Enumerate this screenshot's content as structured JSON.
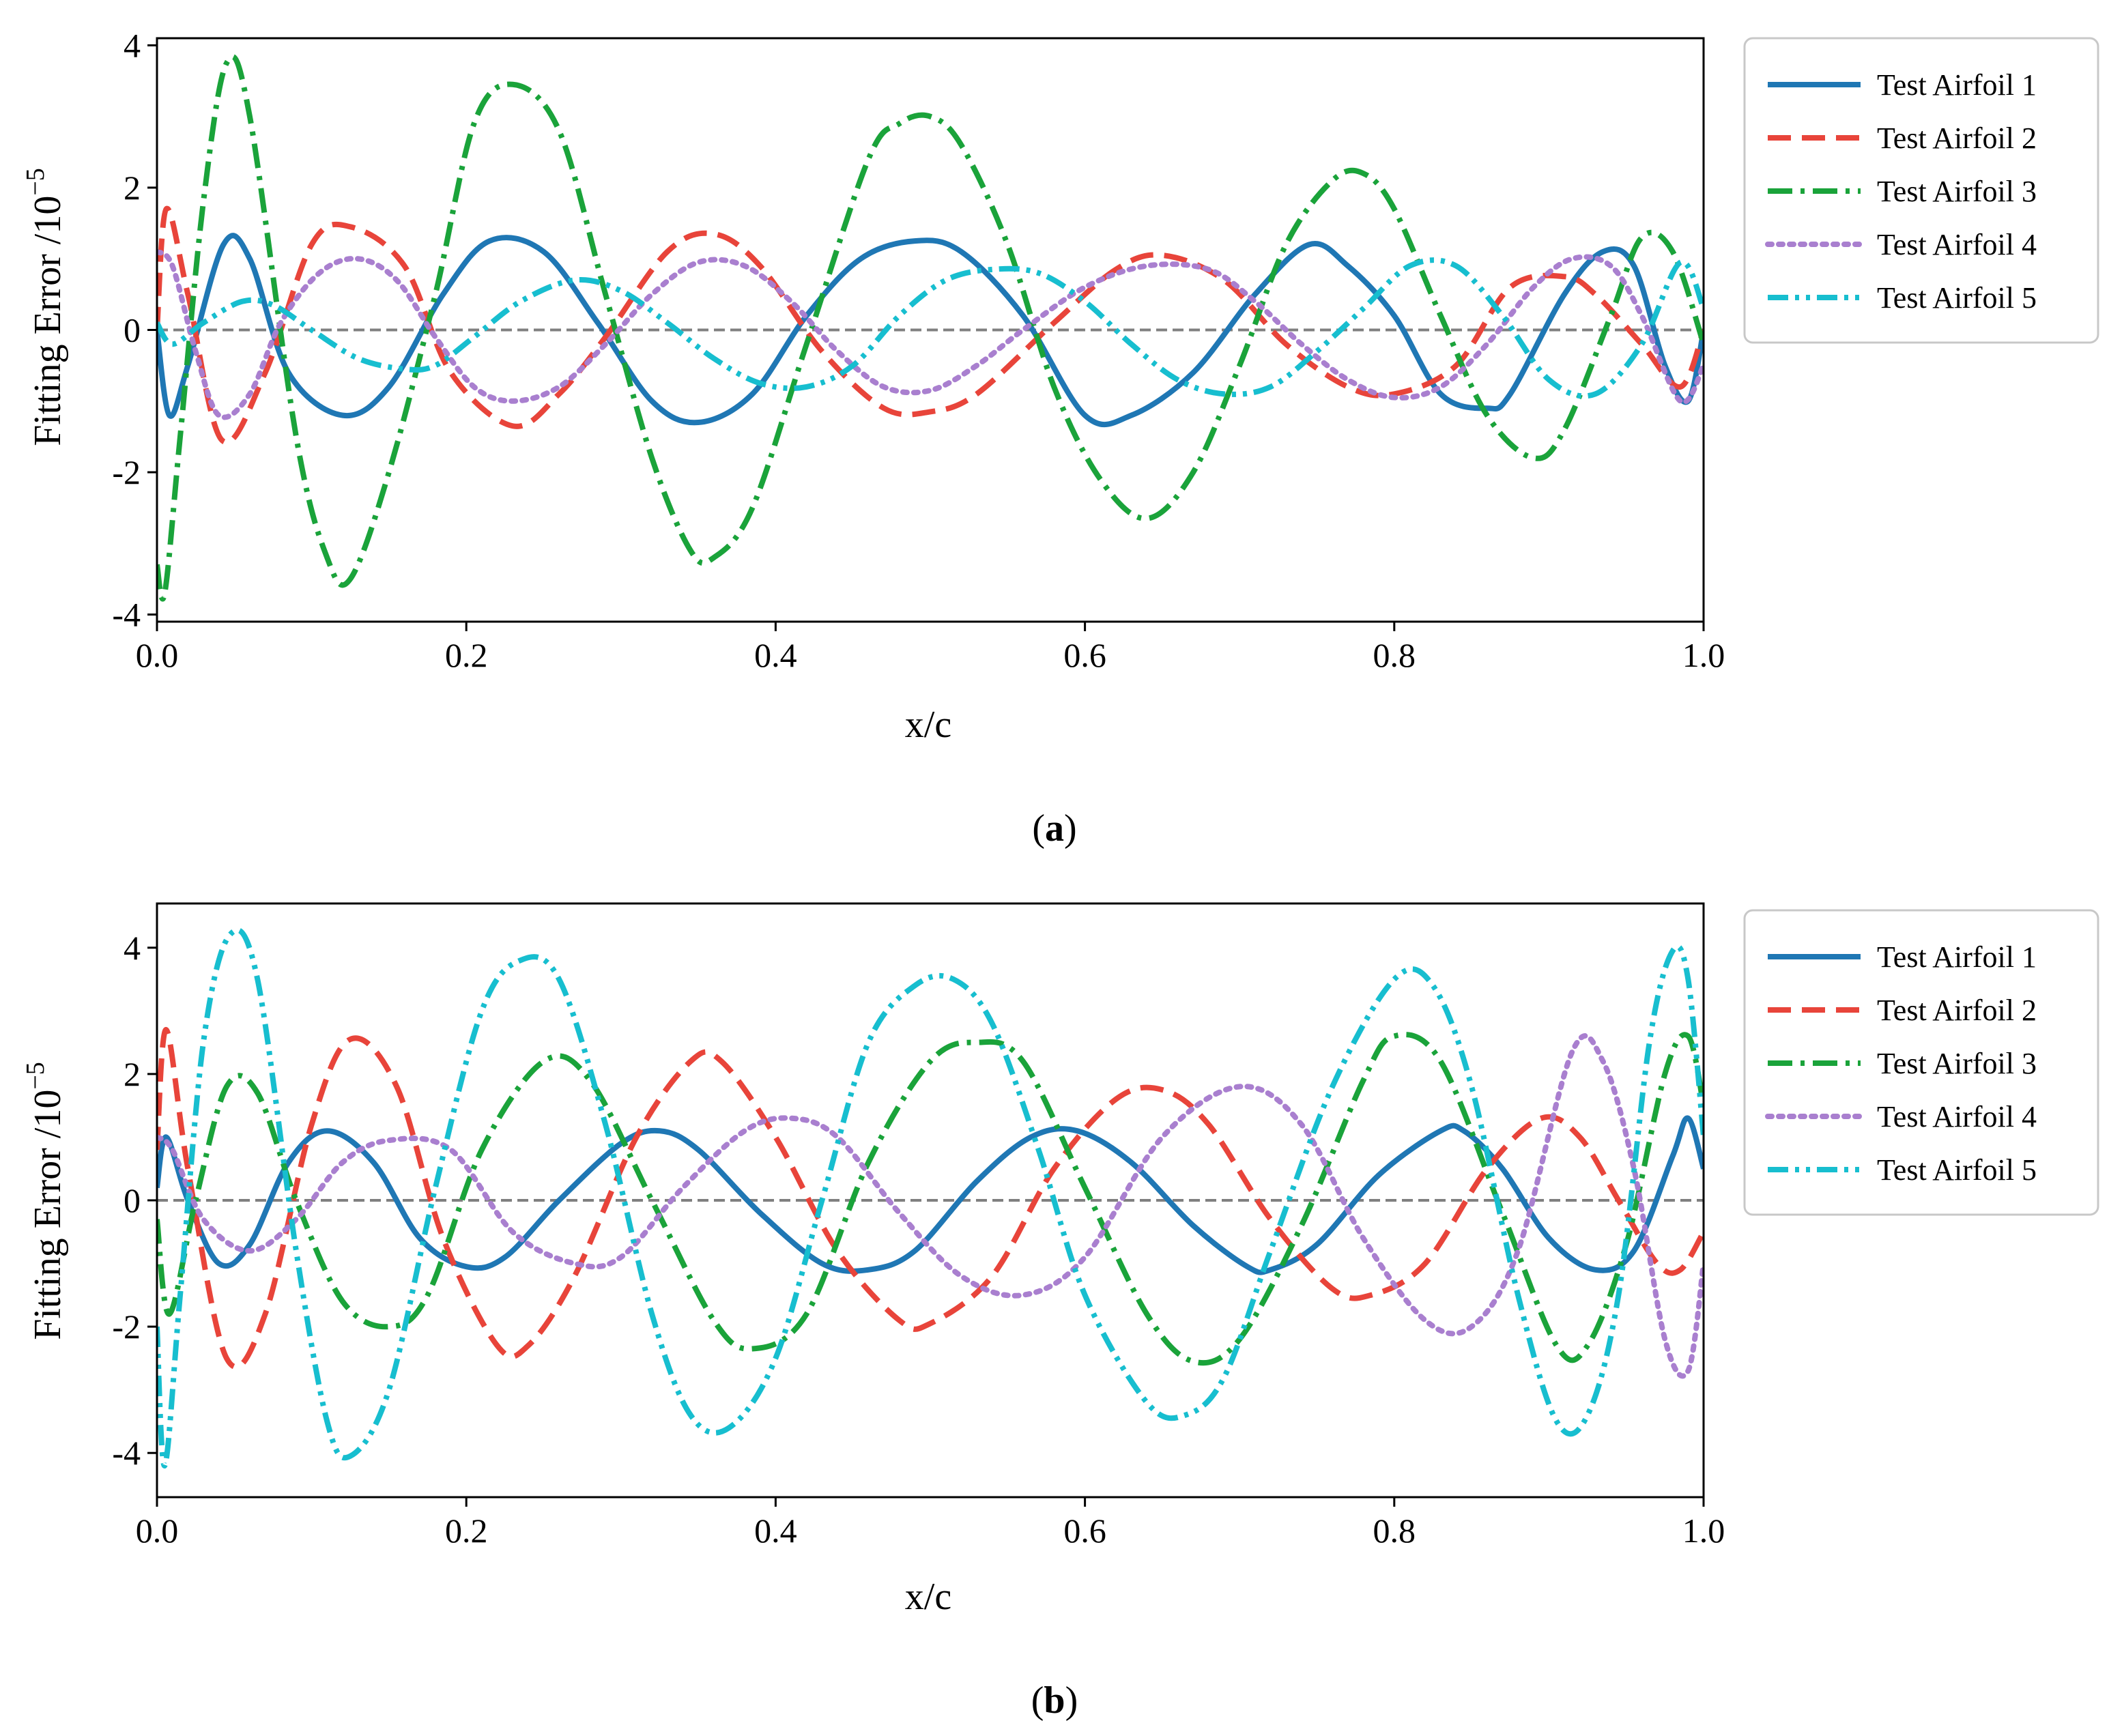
{
  "figure": {
    "captions": [
      "a",
      "b"
    ]
  },
  "chart_data": [
    {
      "type": "line",
      "panel": "a",
      "title": "",
      "xlabel": "x/c",
      "ylabel": "Fitting Error /10",
      "ylabel_exponent": "−5",
      "xlim": [
        0,
        1
      ],
      "ylim": [
        -4.1,
        4.1
      ],
      "xticks": [
        0,
        0.2,
        0.4,
        0.6,
        0.8,
        1.0
      ],
      "xtick_labels": [
        "0.0",
        "0.2",
        "0.4",
        "0.6",
        "0.8",
        "1.0"
      ],
      "yticks": [
        -4,
        -2,
        0,
        2,
        4
      ],
      "ytick_labels": [
        "-4",
        "-2",
        "0",
        "2",
        "4"
      ],
      "reference_line": 0,
      "legend_position": "outside-right-top",
      "series": [
        {
          "name": "Test Airfoil 1",
          "color": "#1f77b4",
          "style": "solid",
          "x": [
            0,
            0.008,
            0.02,
            0.043,
            0.06,
            0.085,
            0.12,
            0.15,
            0.185,
            0.215,
            0.25,
            0.285,
            0.32,
            0.35,
            0.385,
            0.42,
            0.455,
            0.49,
            0.52,
            0.56,
            0.6,
            0.63,
            0.67,
            0.71,
            0.745,
            0.77,
            0.8,
            0.83,
            0.86,
            0.875,
            0.91,
            0.935,
            0.955,
            0.975,
            0.99,
            1.0
          ],
          "y": [
            0,
            -1.2,
            -0.5,
            1.2,
            1.0,
            -0.6,
            -1.2,
            -0.8,
            0.5,
            1.25,
            1.1,
            0.1,
            -1.0,
            -1.3,
            -0.9,
            0.2,
            1.0,
            1.25,
            1.1,
            0.2,
            -1.2,
            -1.2,
            -0.6,
            0.5,
            1.2,
            0.9,
            0.2,
            -0.9,
            -1.1,
            -0.9,
            0.5,
            1.1,
            0.9,
            -0.5,
            -1.0,
            0
          ]
        },
        {
          "name": "Test Airfoil 2",
          "color": "#e8443a",
          "style": "dashed",
          "x": [
            0,
            0.006,
            0.02,
            0.042,
            0.07,
            0.1,
            0.125,
            0.16,
            0.19,
            0.23,
            0.26,
            0.29,
            0.33,
            0.36,
            0.39,
            0.43,
            0.47,
            0.5,
            0.53,
            0.58,
            0.62,
            0.65,
            0.69,
            0.73,
            0.77,
            0.8,
            0.84,
            0.875,
            0.91,
            0.93,
            0.96,
            0.985,
            1.0
          ],
          "y": [
            0,
            1.7,
            0.5,
            -1.55,
            -0.6,
            1.2,
            1.45,
            0.9,
            -0.6,
            -1.35,
            -0.9,
            -0.1,
            1.1,
            1.35,
            0.9,
            -0.3,
            -1.1,
            -1.15,
            -0.9,
            0.1,
            0.85,
            1.05,
            0.7,
            -0.2,
            -0.8,
            -0.9,
            -0.5,
            0.6,
            0.75,
            0.5,
            -0.2,
            -0.8,
            0
          ]
        },
        {
          "name": "Test Airfoil 3",
          "color": "#1aa33a",
          "style": "dashdot",
          "x": [
            0,
            0.005,
            0.015,
            0.03,
            0.045,
            0.06,
            0.09,
            0.11,
            0.125,
            0.15,
            0.18,
            0.205,
            0.23,
            0.26,
            0.29,
            0.32,
            0.345,
            0.36,
            0.385,
            0.42,
            0.46,
            0.48,
            0.5,
            0.52,
            0.55,
            0.58,
            0.61,
            0.64,
            0.67,
            0.7,
            0.73,
            0.76,
            0.78,
            0.8,
            0.83,
            0.86,
            0.89,
            0.91,
            0.94,
            0.96,
            0.98,
            1.0
          ],
          "y": [
            -3.3,
            -3.7,
            -1.5,
            1.8,
            3.75,
            3.0,
            -1.5,
            -3.2,
            -3.5,
            -2.0,
            0.5,
            2.9,
            3.45,
            2.8,
            0.5,
            -1.8,
            -3.1,
            -3.2,
            -2.5,
            -0.2,
            2.4,
            2.9,
            3.0,
            2.6,
            1.2,
            -0.8,
            -2.1,
            -2.65,
            -2.0,
            -0.5,
            1.2,
            2.1,
            2.2,
            1.7,
            0.2,
            -1.2,
            -1.8,
            -1.4,
            0.2,
            1.3,
            1.1,
            -0.2
          ]
        },
        {
          "name": "Test Airfoil 4",
          "color": "#a97fcf",
          "style": "dotted",
          "x": [
            0,
            0.01,
            0.025,
            0.04,
            0.06,
            0.08,
            0.105,
            0.13,
            0.155,
            0.18,
            0.205,
            0.23,
            0.26,
            0.29,
            0.32,
            0.35,
            0.38,
            0.41,
            0.44,
            0.47,
            0.5,
            0.53,
            0.56,
            0.6,
            0.64,
            0.68,
            0.71,
            0.74,
            0.77,
            0.8,
            0.83,
            0.86,
            0.89,
            0.915,
            0.94,
            0.96,
            0.985,
            1.0
          ],
          "y": [
            1.1,
            0.9,
            -0.3,
            -1.2,
            -0.9,
            0.1,
            0.8,
            1.0,
            0.7,
            -0.1,
            -0.8,
            -1.0,
            -0.8,
            -0.2,
            0.5,
            0.95,
            0.9,
            0.4,
            -0.3,
            -0.8,
            -0.85,
            -0.5,
            0.0,
            0.6,
            0.9,
            0.85,
            0.4,
            -0.2,
            -0.7,
            -0.95,
            -0.8,
            -0.2,
            0.6,
            1.0,
            0.9,
            0.2,
            -1.0,
            -0.5
          ]
        },
        {
          "name": "Test Airfoil 5",
          "color": "#17becf",
          "style": "dashdotdot",
          "x": [
            0,
            0.01,
            0.03,
            0.055,
            0.075,
            0.1,
            0.13,
            0.16,
            0.18,
            0.205,
            0.235,
            0.27,
            0.3,
            0.33,
            0.36,
            0.39,
            0.42,
            0.45,
            0.48,
            0.51,
            0.54,
            0.57,
            0.6,
            0.63,
            0.66,
            0.69,
            0.72,
            0.75,
            0.78,
            0.81,
            0.84,
            0.87,
            0.9,
            0.93,
            0.96,
            0.985,
            1.0
          ],
          "y": [
            0.1,
            -0.2,
            0.1,
            0.4,
            0.35,
            0.0,
            -0.4,
            -0.55,
            -0.5,
            -0.1,
            0.4,
            0.7,
            0.55,
            0.1,
            -0.4,
            -0.75,
            -0.8,
            -0.5,
            0.2,
            0.7,
            0.85,
            0.8,
            0.4,
            -0.2,
            -0.7,
            -0.9,
            -0.8,
            -0.3,
            0.3,
            0.9,
            0.9,
            0.2,
            -0.7,
            -0.9,
            -0.2,
            0.95,
            0.3
          ]
        }
      ]
    },
    {
      "type": "line",
      "panel": "b",
      "title": "",
      "xlabel": "x/c",
      "ylabel": "Fitting Error /10",
      "ylabel_exponent": "−5",
      "xlim": [
        0,
        1
      ],
      "ylim": [
        -4.7,
        4.7
      ],
      "xticks": [
        0,
        0.2,
        0.4,
        0.6,
        0.8,
        1.0
      ],
      "xtick_labels": [
        "0.0",
        "0.2",
        "0.4",
        "0.6",
        "0.8",
        "1.0"
      ],
      "yticks": [
        -4,
        -2,
        0,
        2,
        4
      ],
      "ytick_labels": [
        "-4",
        "-2",
        "0",
        "2",
        "4"
      ],
      "reference_line": 0,
      "legend_position": "outside-right-top",
      "series": [
        {
          "name": "Test Airfoil 1",
          "color": "#1f77b4",
          "style": "solid",
          "x": [
            0,
            0.006,
            0.02,
            0.04,
            0.06,
            0.085,
            0.11,
            0.14,
            0.17,
            0.2,
            0.225,
            0.26,
            0.3,
            0.325,
            0.35,
            0.39,
            0.43,
            0.46,
            0.49,
            0.53,
            0.565,
            0.595,
            0.63,
            0.67,
            0.705,
            0.72,
            0.75,
            0.79,
            0.83,
            0.845,
            0.87,
            0.9,
            0.93,
            0.955,
            0.98,
            0.99,
            1.0
          ],
          "y": [
            0.2,
            1.0,
            0.0,
            -1.0,
            -0.7,
            0.6,
            1.1,
            0.6,
            -0.6,
            -1.05,
            -0.9,
            0.0,
            0.9,
            1.1,
            0.8,
            -0.2,
            -1.0,
            -1.1,
            -0.8,
            0.3,
            1.0,
            1.1,
            0.6,
            -0.4,
            -1.05,
            -1.1,
            -0.7,
            0.4,
            1.1,
            1.1,
            0.5,
            -0.6,
            -1.1,
            -0.8,
            0.7,
            1.3,
            0.5
          ]
        },
        {
          "name": "Test Airfoil 2",
          "color": "#e8443a",
          "style": "dashed",
          "x": [
            0,
            0.006,
            0.02,
            0.045,
            0.07,
            0.1,
            0.125,
            0.155,
            0.185,
            0.22,
            0.24,
            0.27,
            0.31,
            0.345,
            0.365,
            0.4,
            0.44,
            0.48,
            0.5,
            0.54,
            0.58,
            0.62,
            0.65,
            0.68,
            0.72,
            0.76,
            0.785,
            0.82,
            0.86,
            0.895,
            0.92,
            0.945,
            0.97,
            0.985,
            1.0
          ],
          "y": [
            0.8,
            2.7,
            0.5,
            -2.5,
            -1.8,
            1.2,
            2.55,
            1.8,
            -0.6,
            -2.3,
            -2.3,
            -1.2,
            1.0,
            2.2,
            2.2,
            1.0,
            -0.8,
            -1.9,
            -1.95,
            -1.2,
            0.5,
            1.6,
            1.75,
            1.2,
            -0.3,
            -1.4,
            -1.5,
            -1.0,
            0.5,
            1.3,
            1.0,
            0.0,
            -1.0,
            -1.1,
            -0.5
          ]
        },
        {
          "name": "Test Airfoil 3",
          "color": "#1aa33a",
          "style": "dashdot",
          "x": [
            0,
            0.008,
            0.025,
            0.045,
            0.065,
            0.09,
            0.12,
            0.15,
            0.175,
            0.21,
            0.25,
            0.28,
            0.32,
            0.36,
            0.385,
            0.42,
            0.46,
            0.5,
            0.53,
            0.56,
            0.6,
            0.64,
            0.67,
            0.7,
            0.74,
            0.78,
            0.8,
            0.83,
            0.87,
            0.905,
            0.925,
            0.95,
            0.975,
            0.99,
            1.0
          ],
          "y": [
            -0.3,
            -1.8,
            0.0,
            1.8,
            1.7,
            0.0,
            -1.6,
            -2.0,
            -1.5,
            0.8,
            2.2,
            1.9,
            0.0,
            -1.9,
            -2.35,
            -1.8,
            0.6,
            2.2,
            2.5,
            2.2,
            0.2,
            -1.8,
            -2.55,
            -2.2,
            -0.4,
            1.9,
            2.6,
            2.2,
            -0.2,
            -2.3,
            -2.3,
            -0.7,
            2.0,
            2.6,
            1.5
          ]
        },
        {
          "name": "Test Airfoil 4",
          "color": "#a97fcf",
          "style": "dotted",
          "x": [
            0,
            0.01,
            0.03,
            0.06,
            0.09,
            0.12,
            0.15,
            0.19,
            0.23,
            0.27,
            0.3,
            0.34,
            0.38,
            0.41,
            0.44,
            0.48,
            0.52,
            0.56,
            0.6,
            0.65,
            0.7,
            0.74,
            0.78,
            0.82,
            0.85,
            0.88,
            0.915,
            0.935,
            0.955,
            0.975,
            0.99,
            1.0
          ],
          "y": [
            1.0,
            0.8,
            -0.3,
            -0.8,
            -0.3,
            0.6,
            0.95,
            0.8,
            -0.5,
            -1.0,
            -0.9,
            0.2,
            1.1,
            1.3,
            1.0,
            -0.2,
            -1.2,
            -1.5,
            -0.9,
            1.0,
            1.8,
            1.2,
            -0.6,
            -1.9,
            -2.0,
            -0.8,
            2.35,
            2.2,
            0.5,
            -2.2,
            -2.7,
            -1.0
          ]
        },
        {
          "name": "Test Airfoil 5",
          "color": "#17becf",
          "style": "dashdotdot",
          "x": [
            0,
            0.005,
            0.015,
            0.03,
            0.047,
            0.065,
            0.09,
            0.11,
            0.125,
            0.15,
            0.18,
            0.21,
            0.235,
            0.26,
            0.29,
            0.32,
            0.345,
            0.37,
            0.4,
            0.43,
            0.46,
            0.49,
            0.515,
            0.54,
            0.57,
            0.6,
            0.64,
            0.665,
            0.69,
            0.72,
            0.76,
            0.8,
            0.825,
            0.85,
            0.88,
            0.905,
            0.925,
            0.945,
            0.965,
            0.98,
            0.99,
            1.0
          ],
          "y": [
            -2.0,
            -4.2,
            -1.5,
            2.5,
            4.2,
            3.5,
            -0.8,
            -3.5,
            -4.05,
            -3.0,
            0.2,
            3.0,
            3.8,
            3.5,
            1.2,
            -1.8,
            -3.4,
            -3.6,
            -2.5,
            0.0,
            2.5,
            3.4,
            3.5,
            2.8,
            0.8,
            -1.5,
            -3.2,
            -3.4,
            -2.8,
            -0.8,
            1.8,
            3.5,
            3.4,
            1.8,
            -1.5,
            -3.5,
            -3.4,
            -1.5,
            2.5,
            3.95,
            3.5,
            1.0
          ]
        }
      ]
    }
  ]
}
